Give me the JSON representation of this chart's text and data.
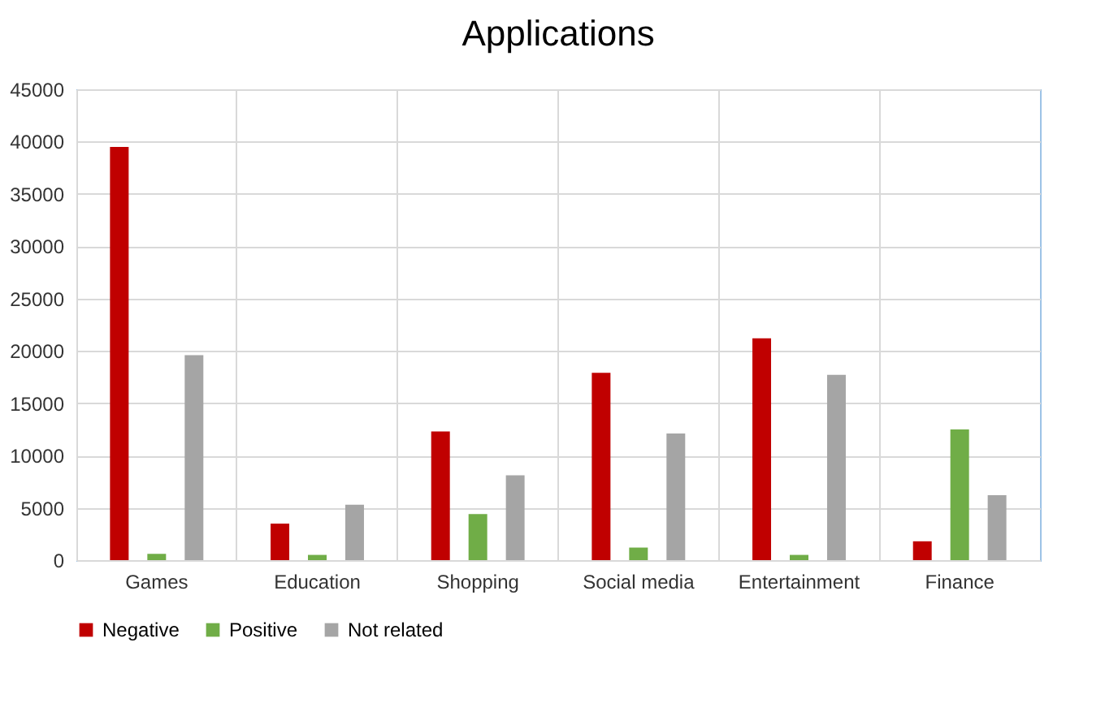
{
  "chart_data": {
    "type": "bar",
    "title": "Applications",
    "categories": [
      "Games",
      "Education",
      "Shopping",
      "Social media",
      "Entertainment",
      "Finance"
    ],
    "series": [
      {
        "name": "Negative",
        "color": "#c00000",
        "values": [
          39500,
          3500,
          12300,
          17900,
          21200,
          1800
        ]
      },
      {
        "name": "Positive",
        "color": "#70ad47",
        "values": [
          600,
          500,
          4400,
          1200,
          500,
          12500
        ]
      },
      {
        "name": "Not related",
        "color": "#a5a5a5",
        "values": [
          19600,
          5300,
          8100,
          12100,
          17700,
          6200
        ]
      }
    ],
    "ylim": [
      0,
      45000
    ],
    "yticks": [
      0,
      5000,
      10000,
      15000,
      20000,
      25000,
      30000,
      35000,
      40000,
      45000
    ],
    "grid": true,
    "legend": "bottom"
  }
}
